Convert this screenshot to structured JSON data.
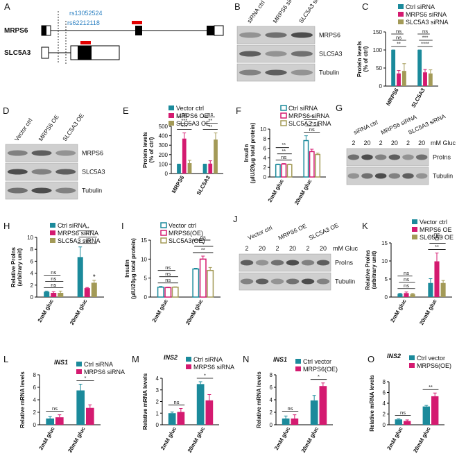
{
  "gene_diagram": {
    "panel": "A",
    "genes": [
      "MRPS6",
      "SLC5A3"
    ],
    "snps": [
      "rs13052524",
      "rs62212118"
    ]
  },
  "blots": [
    {
      "panel": "B",
      "lanes": [
        "siRNA ctrl",
        "MRPS6 siRNA",
        "SLC5A3 siRNA"
      ],
      "rows": [
        "MRPS6",
        "SLC5A3",
        "Tubulin"
      ]
    },
    {
      "panel": "D",
      "lanes": [
        "Vector ctrl",
        "MRPS6 OE",
        "SLC5A3 OE"
      ],
      "rows": [
        "MRPS6",
        "SLC5A3",
        "Tubulin"
      ]
    },
    {
      "panel": "G",
      "lanes": [
        "siRNA ctrl",
        "MRPS6 siRNA",
        "SLC5A3 siRNA"
      ],
      "glucose": [
        "2",
        "20",
        "2",
        "20",
        "2",
        "20"
      ],
      "unit": "mM Gluc",
      "rows": [
        "ProIns",
        "Tubulin"
      ]
    },
    {
      "panel": "J",
      "lanes": [
        "Vector ctrl",
        "MRPS6 OE",
        "SLC5A3 OE"
      ],
      "glucose": [
        "2",
        "20",
        "2",
        "20",
        "2",
        "20"
      ],
      "unit": "mM Gluc",
      "rows": [
        "ProIns",
        "Tubulin"
      ]
    }
  ],
  "chart_data": [
    {
      "type": "bar",
      "panel": "C",
      "ylabel": [
        "Protein levels",
        "(% of ctrl)"
      ],
      "categories": [
        "MRPS6",
        "SLC5A3"
      ],
      "ylim": [
        0,
        150
      ],
      "yticks": [
        0,
        50,
        100,
        150
      ],
      "series": [
        {
          "name": "Ctrl siRNA",
          "color": "#1b8a9b",
          "values": [
            100,
            100
          ],
          "errors": [
            0,
            0
          ]
        },
        {
          "name": "MRPS6 siRNA",
          "color": "#d41a70",
          "values": [
            35,
            38
          ],
          "errors": [
            8,
            8
          ]
        },
        {
          "name": "SLC5A3 siRNA",
          "color": "#a39a57",
          "values": [
            42,
            35
          ],
          "errors": [
            20,
            10
          ]
        }
      ],
      "annotations": [
        [
          "**",
          "ns",
          "ns"
        ],
        [
          "****",
          "***",
          "ns"
        ]
      ]
    },
    {
      "type": "bar",
      "panel": "E",
      "ylabel": [
        "Protein levels",
        "(% of ctrl)"
      ],
      "categories": [
        "MRPS6",
        "SLC5A3"
      ],
      "ylim": [
        0,
        500
      ],
      "yticks": [
        0,
        100,
        200,
        300,
        400,
        500
      ],
      "series": [
        {
          "name": "Vector ctrl",
          "color": "#1b8a9b",
          "values": [
            100,
            100
          ],
          "errors": [
            0,
            0
          ]
        },
        {
          "name": "MRPS6 OE",
          "color": "#d41a70",
          "values": [
            370,
            105
          ],
          "errors": [
            60,
            30
          ]
        },
        {
          "name": "SLC5A3 OE",
          "color": "#a39a57",
          "values": [
            110,
            360
          ],
          "errors": [
            30,
            70
          ]
        }
      ],
      "annotations": [
        [
          "***",
          "***",
          "ns"
        ],
        [
          "**",
          "**",
          "ns"
        ]
      ]
    },
    {
      "type": "bar",
      "panel": "F",
      "bar_style": "outline",
      "ylabel": [
        "Insulin",
        "(μIU/20μg total protein)"
      ],
      "categories": [
        "2mM gluc",
        "20mM gluc"
      ],
      "ylim": [
        0,
        10
      ],
      "yticks": [
        0,
        2,
        4,
        6,
        8,
        10
      ],
      "series": [
        {
          "name": "Ctrl siRNA",
          "color": "#1b8a9b",
          "values": [
            2.6,
            7.6
          ],
          "errors": [
            0.1,
            1.0
          ]
        },
        {
          "name": "MRPS6 siRNA",
          "color": "#d41a70",
          "values": [
            2.7,
            5.3
          ],
          "errors": [
            0.1,
            0.5
          ]
        },
        {
          "name": "SLC5A3 siRNA",
          "color": "#a39a57",
          "values": [
            2.6,
            4.7
          ],
          "errors": [
            0.1,
            0.3
          ]
        }
      ],
      "annotations": [
        [
          "ns",
          "**",
          "**"
        ],
        [
          "ns",
          "*",
          "**"
        ]
      ]
    },
    {
      "type": "bar",
      "panel": "H",
      "ylabel": [
        "Relative ProIns",
        "(arbitrary unit)"
      ],
      "categories": [
        "2mM gluc",
        "20mM gluc"
      ],
      "ylim": [
        0,
        10
      ],
      "yticks": [
        0,
        2,
        4,
        6,
        8,
        10
      ],
      "series": [
        {
          "name": "Ctrl siRNA",
          "color": "#1b8a9b",
          "values": [
            0.9,
            6.7
          ],
          "errors": [
            0.1,
            1.7
          ]
        },
        {
          "name": "MRPS6 siRNA",
          "color": "#d41a70",
          "values": [
            0.7,
            1.5
          ],
          "errors": [
            0.2,
            0.1
          ]
        },
        {
          "name": "SLC5A3 siRNA",
          "color": "#a39a57",
          "values": [
            0.7,
            2.4
          ],
          "errors": [
            0.3,
            0.4
          ]
        }
      ],
      "annotations": [
        [
          "ns",
          "ns",
          "ns"
        ],
        [
          "ns",
          "**",
          "**"
        ]
      ],
      "marks": [
        "",
        "*"
      ]
    },
    {
      "type": "bar",
      "panel": "I",
      "bar_style": "outline",
      "ylabel": [
        "Insulin",
        "(μIU/20μg total protein)"
      ],
      "categories": [
        "2mM gluc",
        "20mM gluc"
      ],
      "ylim": [
        0,
        15
      ],
      "yticks": [
        0,
        5,
        10,
        15
      ],
      "series": [
        {
          "name": "Vector ctrl",
          "color": "#1b8a9b",
          "values": [
            2.6,
            7.4
          ],
          "errors": [
            0.2,
            0.2
          ]
        },
        {
          "name": "MRPS6(OE)",
          "color": "#d41a70",
          "values": [
            2.5,
            10
          ],
          "errors": [
            0.1,
            0.8
          ]
        },
        {
          "name": "SLC5A3(OE)",
          "color": "#a39a57",
          "values": [
            2.6,
            7.0
          ],
          "errors": [
            0.1,
            0.8
          ]
        }
      ],
      "annotations": [
        [
          "ns",
          "ns",
          "ns"
        ],
        [
          "**",
          "*",
          "ns"
        ]
      ]
    },
    {
      "type": "bar",
      "panel": "K",
      "ylabel": [
        "Relative ProIns",
        "(arbitrary unit)"
      ],
      "categories": [
        "2mM gluc",
        "20mM gluc"
      ],
      "ylim": [
        0,
        15
      ],
      "yticks": [
        0,
        5,
        10,
        15
      ],
      "series": [
        {
          "name": "Vector ctrl",
          "color": "#1b8a9b",
          "values": [
            0.9,
            3.9
          ],
          "errors": [
            0.1,
            1.2
          ]
        },
        {
          "name": "MRPS6 OE",
          "color": "#d41a70",
          "values": [
            1.1,
            9.9
          ],
          "errors": [
            0.3,
            2.3
          ]
        },
        {
          "name": "SLC5A3 OE",
          "color": "#a39a57",
          "values": [
            0.8,
            3.9
          ],
          "errors": [
            0.2,
            0.7
          ]
        }
      ],
      "annotations": [
        [
          "ns",
          "ns",
          "ns"
        ],
        [
          "**",
          "**",
          "ns"
        ]
      ]
    },
    {
      "type": "bar",
      "panel": "L",
      "title": "INS1",
      "ylabel": [
        "Relative mRNA levels"
      ],
      "categories": [
        "2mM gluc",
        "20mM gluc"
      ],
      "ylim": [
        0,
        8
      ],
      "yticks": [
        0,
        2,
        4,
        6,
        8
      ],
      "series": [
        {
          "name": "Ctrl siRNA",
          "color": "#1b8a9b",
          "values": [
            1.0,
            5.5
          ],
          "errors": [
            0.3,
            1.0
          ]
        },
        {
          "name": "MRPS6 siRNA",
          "color": "#d41a70",
          "values": [
            1.2,
            2.7
          ],
          "errors": [
            0.4,
            0.5
          ]
        }
      ],
      "annotations": [
        [
          "ns"
        ],
        [
          "*"
        ]
      ]
    },
    {
      "type": "bar",
      "panel": "M",
      "title": "INS2",
      "ylabel": [
        "Relative mRNA levels"
      ],
      "categories": [
        "2mM gluc",
        "20mM gluc"
      ],
      "ylim": [
        0,
        4
      ],
      "yticks": [
        0,
        1,
        2,
        3,
        4
      ],
      "series": [
        {
          "name": "Ctrl siRNA",
          "color": "#1b8a9b",
          "values": [
            1.0,
            3.5
          ],
          "errors": [
            0.1,
            0.2
          ]
        },
        {
          "name": "MRPS6 siRNA",
          "color": "#d41a70",
          "values": [
            1.1,
            2.1
          ],
          "errors": [
            0.3,
            0.5
          ]
        }
      ],
      "annotations": [
        [
          "ns"
        ],
        [
          "*"
        ]
      ]
    },
    {
      "type": "bar",
      "panel": "N",
      "title": "INS1",
      "ylabel": [
        "Relative mRNA levels"
      ],
      "categories": [
        "2mM gluc",
        "20mM gluc"
      ],
      "ylim": [
        0,
        8
      ],
      "yticks": [
        0,
        2,
        4,
        6,
        8
      ],
      "series": [
        {
          "name": "Ctrl vector",
          "color": "#1b8a9b",
          "values": [
            1.0,
            3.9
          ],
          "errors": [
            0.4,
            0.8
          ]
        },
        {
          "name": "MRPS6(OE)",
          "color": "#d41a70",
          "values": [
            1.0,
            6.2
          ],
          "errors": [
            0.6,
            0.5
          ]
        }
      ],
      "annotations": [
        [
          "ns"
        ],
        [
          "*"
        ]
      ]
    },
    {
      "type": "bar",
      "panel": "O",
      "title": "INS2",
      "ylabel": [
        "Relative mRNA levels"
      ],
      "categories": [
        "2mM gluc",
        "20mM gluc"
      ],
      "ylim": [
        0,
        8
      ],
      "yticks": [
        0,
        2,
        4,
        6,
        8
      ],
      "series": [
        {
          "name": "Ctrl vector",
          "color": "#1b8a9b",
          "values": [
            1.0,
            3.4
          ],
          "errors": [
            0.1,
            0.2
          ]
        },
        {
          "name": "MRPS6(OE)",
          "color": "#d41a70",
          "values": [
            0.7,
            5.3
          ],
          "errors": [
            0.2,
            0.6
          ]
        }
      ],
      "annotations": [
        [
          "ns"
        ],
        [
          "**"
        ]
      ]
    }
  ]
}
